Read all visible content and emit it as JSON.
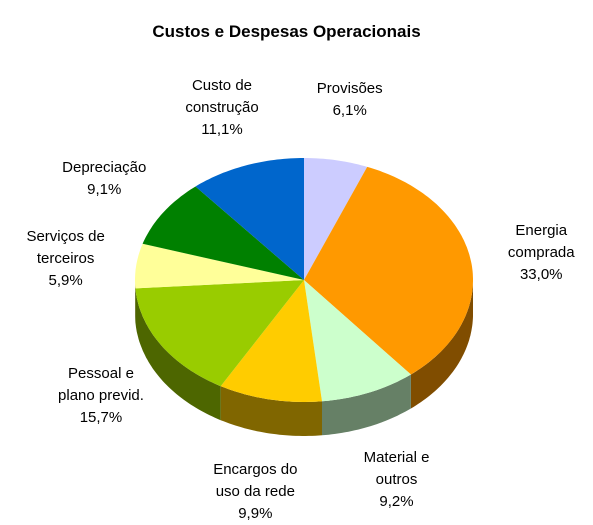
{
  "chart_data": {
    "type": "pie3d",
    "title": "Custos e Despesas Operacionais",
    "categories": [
      "Provisões",
      "Energia comprada",
      "Material e outros",
      "Encargos do uso da rede",
      "Pessoal e plano previd.",
      "Serviços de terceiros",
      "Depreciação",
      "Custo de construção"
    ],
    "values": [
      6.1,
      33.0,
      9.2,
      9.9,
      15.7,
      5.9,
      9.1,
      11.1
    ],
    "value_labels": [
      "6,1%",
      "33,0%",
      "9,2%",
      "9,9%",
      "15,7%",
      "5,9%",
      "9,1%",
      "11,1%"
    ],
    "colors": [
      "#ccccff",
      "#ff9900",
      "#ccffcc",
      "#ffcc00",
      "#99cc00",
      "#ffff99",
      "#008000",
      "#0066cc"
    ]
  }
}
